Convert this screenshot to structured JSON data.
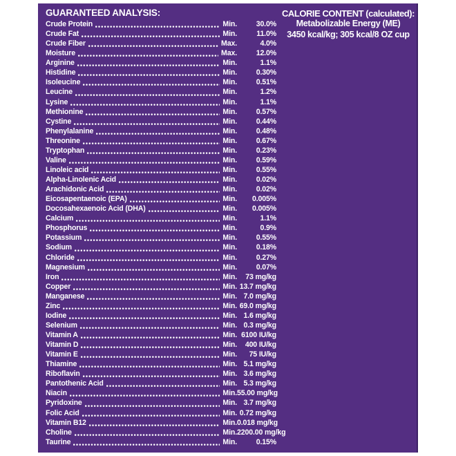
{
  "colors": {
    "page_background": "#ffffff",
    "panel_background": "#542e82",
    "text": "#ffffff"
  },
  "guaranteed_analysis": {
    "title": "GUARANTEED ANALYSIS:",
    "rows": [
      {
        "label": "Crude Protein",
        "limit": "Min.",
        "value": "30.0%"
      },
      {
        "label": "Crude Fat",
        "limit": "Min.",
        "value": "11.0%"
      },
      {
        "label": "Crude Fiber",
        "limit": "Max.",
        "value": "4.0%"
      },
      {
        "label": "Moisture",
        "limit": "Max.",
        "value": "12.0%"
      },
      {
        "label": "Arginine",
        "limit": "Min.",
        "value": "1.1%"
      },
      {
        "label": "Histidine",
        "limit": "Min.",
        "value": "0.30%"
      },
      {
        "label": "Isoleucine",
        "limit": "Min.",
        "value": "0.51%"
      },
      {
        "label": "Leucine",
        "limit": "Min.",
        "value": "1.2%"
      },
      {
        "label": "Lysine",
        "limit": "Min.",
        "value": "1.1%"
      },
      {
        "label": "Methionine",
        "limit": "Min.",
        "value": "0.57%"
      },
      {
        "label": "Cystine",
        "limit": "Min.",
        "value": "0.44%"
      },
      {
        "label": "Phenylalanine",
        "limit": "Min.",
        "value": "0.48%"
      },
      {
        "label": "Threonine",
        "limit": "Min.",
        "value": "0.67%"
      },
      {
        "label": "Tryptophan",
        "limit": "Min.",
        "value": "0.23%"
      },
      {
        "label": "Valine",
        "limit": "Min.",
        "value": "0.59%"
      },
      {
        "label": "Linoleic acid",
        "limit": "Min.",
        "value": "0.55%"
      },
      {
        "label": "Alpha-Linolenic Acid",
        "limit": "Min.",
        "value": "0.02%"
      },
      {
        "label": "Arachidonic Acid",
        "limit": "Min.",
        "value": "0.02%"
      },
      {
        "label": "Eicosapentaenoic (EPA)",
        "limit": "Min.",
        "value": "0.005%"
      },
      {
        "label": "Docosahexaenoic Acid (DHA)",
        "limit": "Min.",
        "value": "0.005%"
      },
      {
        "label": "Calcium",
        "limit": "Min.",
        "value": "1.1%"
      },
      {
        "label": "Phosphorus",
        "limit": "Min.",
        "value": "0.9%"
      },
      {
        "label": "Potassium",
        "limit": "Min.",
        "value": "0.55%"
      },
      {
        "label": "Sodium",
        "limit": "Min.",
        "value": "0.18%"
      },
      {
        "label": "Chloride",
        "limit": "Min.",
        "value": "0.27%"
      },
      {
        "label": "Magnesium",
        "limit": "Min.",
        "value": "0.07%"
      },
      {
        "label": "Iron",
        "limit": "Min.",
        "value": "73 mg/kg"
      },
      {
        "label": "Copper",
        "limit": "Min.",
        "value": "13.7 mg/kg"
      },
      {
        "label": "Manganese",
        "limit": "Min.",
        "value": "7.0 mg/kg"
      },
      {
        "label": "Zinc",
        "limit": "Min.",
        "value": "69.0 mg/kg"
      },
      {
        "label": "Iodine",
        "limit": "Min.",
        "value": "1.6 mg/kg"
      },
      {
        "label": "Selenium",
        "limit": "Min.",
        "value": "0.3 mg/kg"
      },
      {
        "label": "Vitamin A",
        "limit": "Min.",
        "value": "6100 IU/kg"
      },
      {
        "label": "Vitamin D",
        "limit": "Min.",
        "value": "400 IU/kg"
      },
      {
        "label": "Vitamin E",
        "limit": "Min.",
        "value": "75 IU/kg"
      },
      {
        "label": "Thiamine",
        "limit": "Min.",
        "value": "5.1 mg/kg"
      },
      {
        "label": "Riboflavin",
        "limit": "Min.",
        "value": "3.6 mg/kg"
      },
      {
        "label": "Pantothenic Acid",
        "limit": "Min.",
        "value": "5.3 mg/kg"
      },
      {
        "label": "Niacin",
        "limit": "Min.",
        "value": "55.00 mg/kg"
      },
      {
        "label": "Pyridoxine",
        "limit": "Min.",
        "value": "3.7 mg/kg"
      },
      {
        "label": "Folic Acid",
        "limit": "Min.",
        "value": "0.72 mg/kg"
      },
      {
        "label": "Vitamin B12",
        "limit": "Min.",
        "value": "0.018 mg/kg"
      },
      {
        "label": "Choline",
        "limit": "Min.",
        "value": "2200.00 mg/kg"
      },
      {
        "label": "Taurine",
        "limit": "Min.",
        "value": "0.15%"
      }
    ]
  },
  "calorie_content": {
    "title": "CALORIE CONTENT (calculated):",
    "line1": "Metabolizable Energy (ME)",
    "line2": "3450 kcal/kg; 305 kcal/8 OZ cup"
  }
}
